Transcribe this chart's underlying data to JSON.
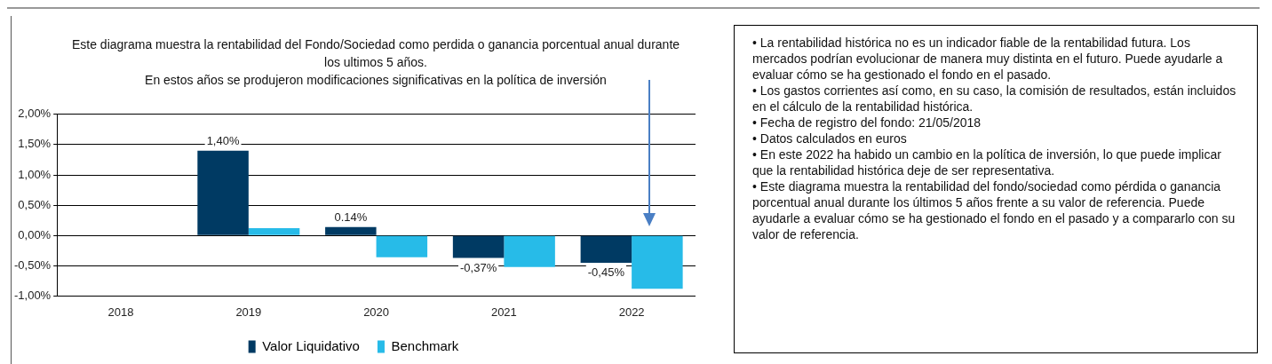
{
  "chart_data": {
    "type": "bar",
    "title": "Este diagrama  muestra la rentabilidad  del Fondo/Sociedad como perdida  o ganancia porcentual anual  durante los ultimos 5 años.",
    "subtitle": "En estos años  se produjeron  modificaciones significativas en la política de inversión",
    "categories": [
      "2018",
      "2019",
      "2020",
      "2021",
      "2022"
    ],
    "series": [
      {
        "name": "Valor Liquidativo",
        "color": "#003a63",
        "values": [
          null,
          1.4,
          0.14,
          -0.37,
          -0.45
        ],
        "value_labels": [
          null,
          "1,40%",
          "0.14%",
          "-0,37%",
          "-0,45%"
        ]
      },
      {
        "name": "Benchmark",
        "color": "#27bbe8",
        "values": [
          null,
          0.12,
          -0.36,
          -0.52,
          -0.88
        ]
      }
    ],
    "ylim": [
      -1,
      2
    ],
    "yticks": [
      {
        "value": -1,
        "label": "-1,00%"
      },
      {
        "value": -0.5,
        "label": "-0,50%"
      },
      {
        "value": 0,
        "label": "0,00%"
      },
      {
        "value": 0.5,
        "label": "0,50%"
      },
      {
        "value": 1,
        "label": "1,00%"
      },
      {
        "value": 1.5,
        "label": "1,50%"
      },
      {
        "value": 2,
        "label": "2,00%"
      }
    ],
    "grid": "y",
    "legend": "bottom",
    "annotations": [
      "• La rentabilidad  histórica no es un indicador  fiable de la rentabilidad  futura. Los mercados podrían evolucionar de manera muy distinta en el futuro. Puede ayudarle a evaluar cómo se ha gestionado el fondo en el pasado.",
      "• Los gastos corrientes así como, en su caso, la comisión de resultados, están incluidos en el cálculo de la rentabilidad  histórica.",
      "• Fecha de registro del fondo: 21/05/2018",
      "• Datos calculados en euros",
      "• En este 2022 ha habido  un cambio en la política de inversión, lo que puede  implicar que  la rentabilidad histórica deje de ser representativa.",
      "• Este diagrama  muestra la rentabilidad  del fondo/sociedad como pérdida  o ganancia porcentual anual  durante los últimos 5 años frente a su  valor de referencia. Puede ayudarle a evaluar cómo se ha gestionado el fondo en el pasado y a compararlo con su valor de referencia."
    ]
  }
}
